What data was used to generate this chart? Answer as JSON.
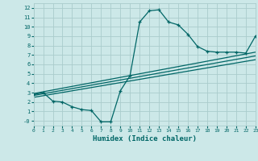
{
  "xlabel": "Humidex (Indice chaleur)",
  "background_color": "#cce8e8",
  "grid_color": "#aacccc",
  "line_color": "#006666",
  "xlim": [
    0,
    23
  ],
  "ylim": [
    -0.5,
    12.5
  ],
  "xticks": [
    0,
    1,
    2,
    3,
    4,
    5,
    6,
    7,
    8,
    9,
    10,
    11,
    12,
    13,
    14,
    15,
    16,
    17,
    18,
    19,
    20,
    21,
    22,
    23
  ],
  "yticks": [
    0,
    1,
    2,
    3,
    4,
    5,
    6,
    7,
    8,
    9,
    10,
    11,
    12
  ],
  "ytick_labels": [
    "-0",
    "1",
    "2",
    "3",
    "4",
    "5",
    "6",
    "7",
    "8",
    "9",
    "10",
    "11",
    "12"
  ],
  "curve_x": [
    0,
    1,
    2,
    3,
    4,
    5,
    6,
    7,
    8,
    9,
    10,
    11,
    12,
    13,
    14,
    15,
    16,
    17,
    18,
    19,
    20,
    21,
    22,
    23
  ],
  "curve_y": [
    2.8,
    3.0,
    2.1,
    2.0,
    1.5,
    1.2,
    1.1,
    -0.1,
    -0.1,
    3.2,
    4.8,
    10.5,
    11.7,
    11.8,
    10.5,
    10.2,
    9.2,
    7.9,
    7.4,
    7.3,
    7.3,
    7.3,
    7.2,
    9.0
  ],
  "line1_x": [
    0,
    23
  ],
  "line1_y": [
    2.5,
    6.5
  ],
  "line2_x": [
    0,
    23
  ],
  "line2_y": [
    2.7,
    6.9
  ],
  "line3_x": [
    0,
    23
  ],
  "line3_y": [
    2.9,
    7.3
  ]
}
